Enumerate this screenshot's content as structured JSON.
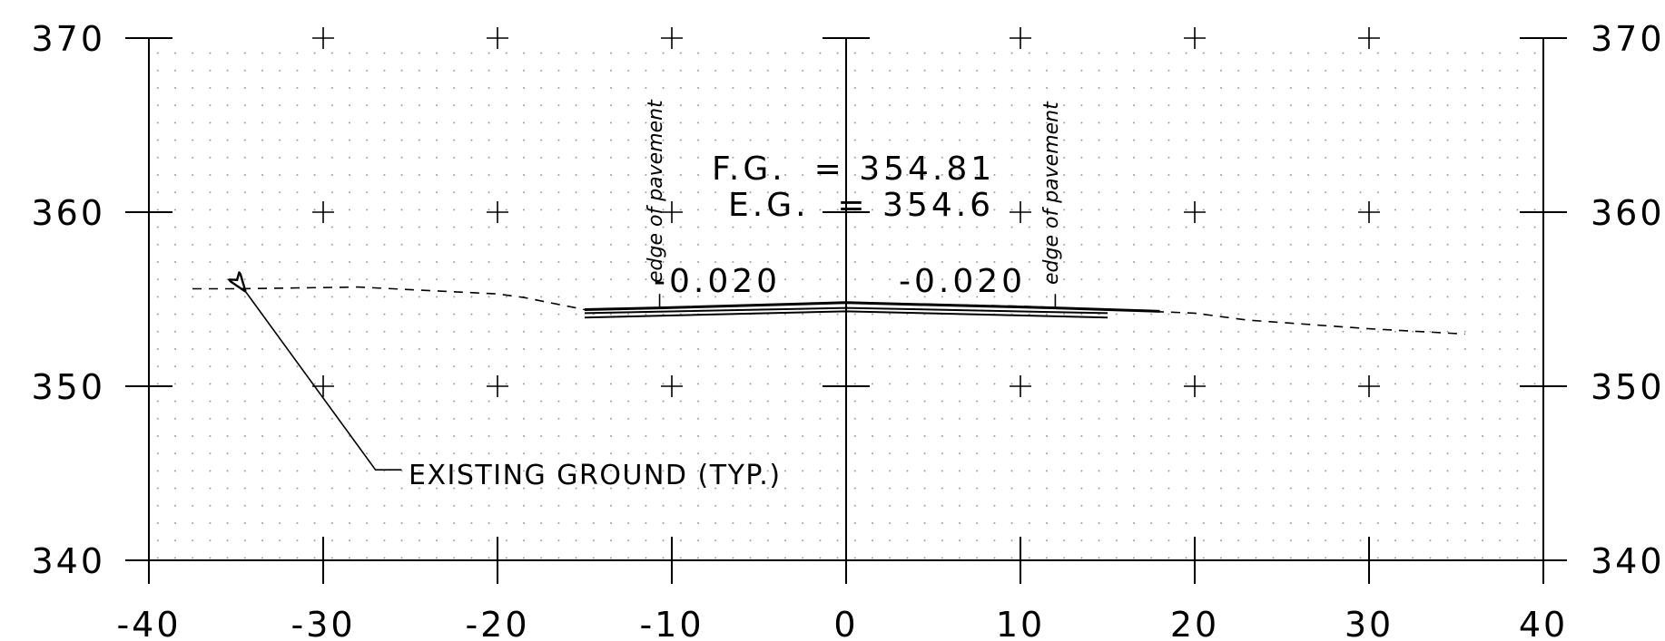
{
  "axes": {
    "x_ticks": [
      -40,
      -30,
      -20,
      -10,
      0,
      10,
      20,
      30,
      40
    ],
    "y_ticks": [
      340,
      350,
      360,
      370
    ],
    "x_range": [
      -40,
      40
    ],
    "y_range": [
      340,
      370
    ],
    "grid": "dotted"
  },
  "annotations": {
    "finished_grade": "F.G.  = 354.81",
    "existing_grade": "E.G.  = 354.6",
    "slope_left": "-0.020",
    "slope_right": "-0.020",
    "edge_left": "edge of pavement",
    "edge_right": "edge of pavement",
    "existing_ground_callout": "EXISTING GROUND (TYP.)"
  },
  "profiles": {
    "existing_ground": [
      [
        -37.5,
        355.6
      ],
      [
        -35,
        355.6
      ],
      [
        -28,
        355.7
      ],
      [
        -20,
        355.3
      ],
      [
        -18.5,
        355.1
      ],
      [
        -15,
        354.4
      ],
      [
        0,
        354.8
      ],
      [
        10,
        354.6
      ],
      [
        20,
        354.2
      ],
      [
        23,
        353.8
      ],
      [
        30,
        353.3
      ],
      [
        35.5,
        353.0
      ]
    ],
    "finished_surface": [
      [
        -15,
        354.4
      ],
      [
        -10.7,
        354.5
      ],
      [
        0,
        354.8
      ],
      [
        12,
        354.5
      ],
      [
        15,
        354.4
      ],
      [
        18,
        354.3
      ]
    ],
    "subgrade_top": [
      [
        -15,
        354.2
      ],
      [
        0,
        354.5
      ],
      [
        15,
        354.2
      ]
    ],
    "subgrade_bottom": [
      [
        -15,
        353.95
      ],
      [
        0,
        354.3
      ],
      [
        15,
        353.95
      ]
    ],
    "callout_arrow": [
      [
        -34.5,
        355.5
      ],
      [
        -27,
        345.2
      ],
      [
        -25.5,
        345.2
      ]
    ]
  }
}
